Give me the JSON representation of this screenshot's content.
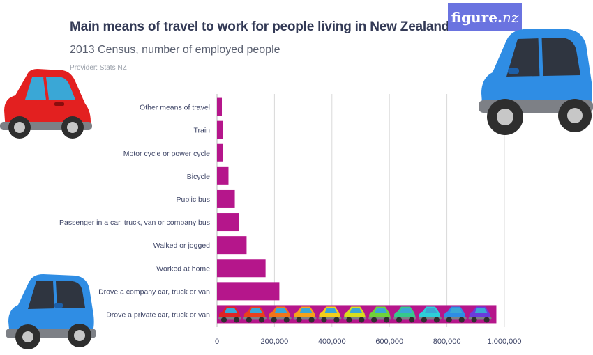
{
  "header": {
    "title": "Main means of travel to work for people living in New Zealand",
    "subtitle": "2013 Census, number of employed people",
    "provider": "Provider: Stats NZ"
  },
  "logo": {
    "main": "figure.",
    "suffix": "nz"
  },
  "colors": {
    "bar": "#b5168b",
    "grid": "#d9d9d9",
    "label": "#3d4466",
    "logo_bg": "#6a73e0"
  },
  "decorations": [
    "red-car-icon",
    "blue-car-icon",
    "blue-car-icon",
    "small-car-row-icons"
  ],
  "chart_data": {
    "type": "bar",
    "orientation": "horizontal",
    "title": "Main means of travel to work for people living in New Zealand",
    "subtitle": "2013 Census, number of employed people",
    "categories": [
      "Other means of travel",
      "Train",
      "Motor cycle or power cycle",
      "Bicycle",
      "Public bus",
      "Passenger in a car, truck, van or company bus",
      "Walked or jogged",
      "Worked at home",
      "Drove a company car, truck or van",
      "Drove a private car, truck or van"
    ],
    "values": [
      17000,
      20000,
      21000,
      40000,
      62000,
      76000,
      103000,
      169000,
      217000,
      972000
    ],
    "xlim": [
      0,
      1000000
    ],
    "xticks": [
      "0",
      "200,000",
      "400,000",
      "600,000",
      "800,000",
      "1,000,000"
    ],
    "grid": true
  }
}
